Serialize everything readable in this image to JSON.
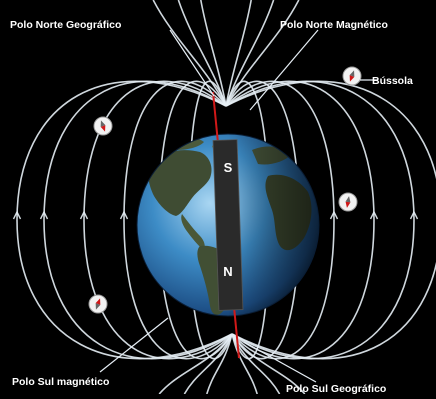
{
  "labels": {
    "geographic_north": "Polo Norte Geográfico",
    "magnetic_north": "Polo Norte Magnético",
    "compass": "Bússola",
    "magnetic_south": "Polo Sul magnético",
    "geographic_south": "Polo Sul Geográfico"
  },
  "magnet": {
    "north_label": "N",
    "south_label": "S"
  },
  "colors": {
    "background": "#000000",
    "field_lines": "#e6eef5",
    "ocean": "#2f78b4",
    "land": "#3d4a34",
    "axis": "#d01818",
    "magnet": "#2a2a2a"
  },
  "icons": [
    "compass-icon"
  ]
}
